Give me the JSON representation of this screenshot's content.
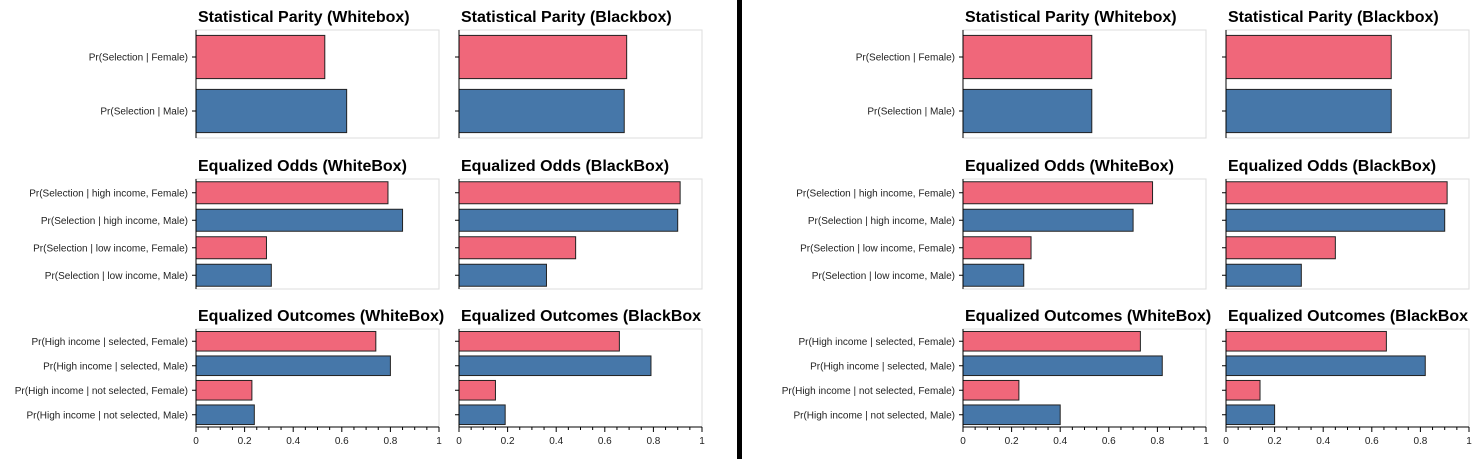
{
  "colors": {
    "female": "#f0677a",
    "male": "#4677a9",
    "border": "#222222",
    "frame": "#dddddd",
    "divider": "#000000"
  },
  "chart_data": [
    {
      "name": "left-figure",
      "panels": [
        {
          "title": "Statistical Parity (Whitebox)",
          "type": "bar",
          "categories": [
            "Pr(Selection | Female)",
            "Pr(Selection | Male)"
          ],
          "values": [
            0.53,
            0.62
          ],
          "groups": [
            "female",
            "male"
          ]
        },
        {
          "title": "Statistical Parity (Blackbox)",
          "type": "bar",
          "categories": [
            "Pr(Selection | Female)",
            "Pr(Selection | Male)"
          ],
          "values": [
            0.69,
            0.68
          ],
          "groups": [
            "female",
            "male"
          ]
        },
        {
          "title": "Equalized Odds (WhiteBox)",
          "type": "bar",
          "categories": [
            "Pr(Selection | high income, Female)",
            "Pr(Selection | high income, Male)",
            "Pr(Selection | low  income, Female)",
            "Pr(Selection | low  income, Male)"
          ],
          "values": [
            0.79,
            0.85,
            0.29,
            0.31
          ],
          "groups": [
            "female",
            "male",
            "female",
            "male"
          ]
        },
        {
          "title": "Equalized Odds (BlackBox)",
          "type": "bar",
          "categories": [
            "Pr(Selection | high income, Female)",
            "Pr(Selection | high income, Male)",
            "Pr(Selection | low  income, Female)",
            "Pr(Selection | low  income, Male)"
          ],
          "values": [
            0.91,
            0.9,
            0.48,
            0.36
          ],
          "groups": [
            "female",
            "male",
            "female",
            "male"
          ]
        },
        {
          "title": "Equalized Outcomes (WhiteBox)",
          "type": "bar",
          "categories": [
            "Pr(High income | selected, Female)",
            "Pr(High income | selected, Male)",
            "Pr(High income | not selected, Female)",
            "Pr(High income | not selected, Male)"
          ],
          "values": [
            0.74,
            0.8,
            0.23,
            0.24
          ],
          "groups": [
            "female",
            "male",
            "female",
            "male"
          ]
        },
        {
          "title": "Equalized Outcomes (BlackBox",
          "type": "bar",
          "categories": [
            "Pr(High income | selected, Female)",
            "Pr(High income | selected, Male)",
            "Pr(High income | not selected, Female)",
            "Pr(High income | not selected, Male)"
          ],
          "values": [
            0.66,
            0.79,
            0.15,
            0.19
          ],
          "groups": [
            "female",
            "male",
            "female",
            "male"
          ]
        }
      ],
      "xlim": [
        0,
        1
      ],
      "xticks": [
        "0",
        "0.2",
        "0.4",
        "0.6",
        "0.8",
        "1"
      ]
    },
    {
      "name": "right-figure",
      "panels": [
        {
          "title": "Statistical Parity (Whitebox)",
          "type": "bar",
          "categories": [
            "Pr(Selection | Female)",
            "Pr(Selection | Male)"
          ],
          "values": [
            0.53,
            0.53
          ],
          "groups": [
            "female",
            "male"
          ]
        },
        {
          "title": "Statistical Parity (Blackbox)",
          "type": "bar",
          "categories": [
            "Pr(Selection | Female)",
            "Pr(Selection | Male)"
          ],
          "values": [
            0.68,
            0.68
          ],
          "groups": [
            "female",
            "male"
          ]
        },
        {
          "title": "Equalized Odds (WhiteBox)",
          "type": "bar",
          "categories": [
            "Pr(Selection | high income, Female)",
            "Pr(Selection | high income, Male)",
            "Pr(Selection | low  income, Female)",
            "Pr(Selection | low  income, Male)"
          ],
          "values": [
            0.78,
            0.7,
            0.28,
            0.25
          ],
          "groups": [
            "female",
            "male",
            "female",
            "male"
          ]
        },
        {
          "title": "Equalized Odds (BlackBox)",
          "type": "bar",
          "categories": [
            "Pr(Selection | high income, Female)",
            "Pr(Selection | high income, Male)",
            "Pr(Selection | low  income, Female)",
            "Pr(Selection | low  income, Male)"
          ],
          "values": [
            0.91,
            0.9,
            0.45,
            0.31
          ],
          "groups": [
            "female",
            "male",
            "female",
            "male"
          ]
        },
        {
          "title": "Equalized Outcomes (WhiteBox)",
          "type": "bar",
          "categories": [
            "Pr(High income | selected, Female)",
            "Pr(High income | selected, Male)",
            "Pr(High income | not selected, Female)",
            "Pr(High income | not selected, Male)"
          ],
          "values": [
            0.73,
            0.82,
            0.23,
            0.4
          ],
          "groups": [
            "female",
            "male",
            "female",
            "male"
          ]
        },
        {
          "title": "Equalized Outcomes (BlackBox",
          "type": "bar",
          "categories": [
            "Pr(High income | selected, Female)",
            "Pr(High income | selected, Male)",
            "Pr(High income | not selected, Female)",
            "Pr(High income | not selected, Male)"
          ],
          "values": [
            0.66,
            0.82,
            0.14,
            0.2
          ],
          "groups": [
            "female",
            "male",
            "female",
            "male"
          ]
        }
      ],
      "xlim": [
        0,
        1
      ],
      "xticks": [
        "0",
        "0.2",
        "0.4",
        "0.6",
        "0.8",
        "1"
      ]
    }
  ]
}
